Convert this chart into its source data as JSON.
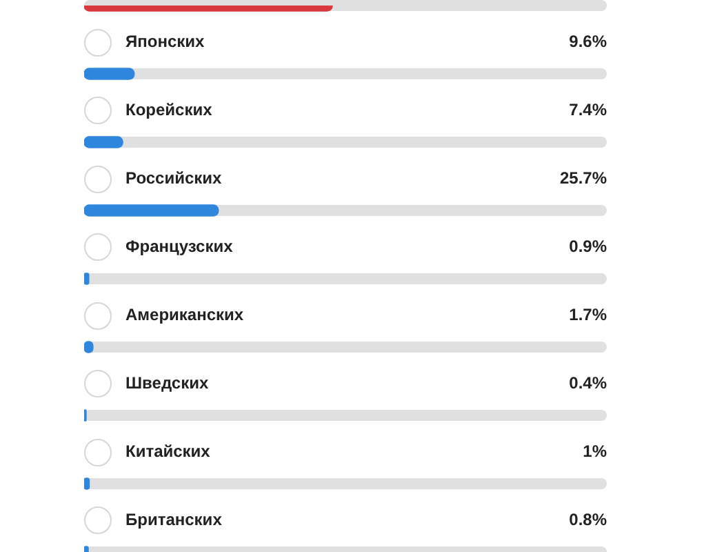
{
  "chart_data": {
    "type": "bar",
    "orientation": "horizontal",
    "categories": [
      null,
      "Японских",
      "Корейских",
      "Российских",
      "Французских",
      "Американских",
      "Шведских",
      "Китайских",
      "Британских"
    ],
    "values": [
      47.5,
      9.6,
      7.4,
      25.7,
      0.9,
      1.7,
      0.4,
      1,
      0.8
    ],
    "value_labels": [
      null,
      "9.6%",
      "7.4%",
      "25.7%",
      "0.9%",
      "1.7%",
      "0.4%",
      "1%",
      "0.8%"
    ],
    "colors": [
      "#d83a3e",
      "#2f86dd",
      "#2f86dd",
      "#2f86dd",
      "#2f86dd",
      "#2f86dd",
      "#2f86dd",
      "#2f86dd",
      "#2f86dd"
    ],
    "xlim": [
      0,
      100
    ]
  }
}
